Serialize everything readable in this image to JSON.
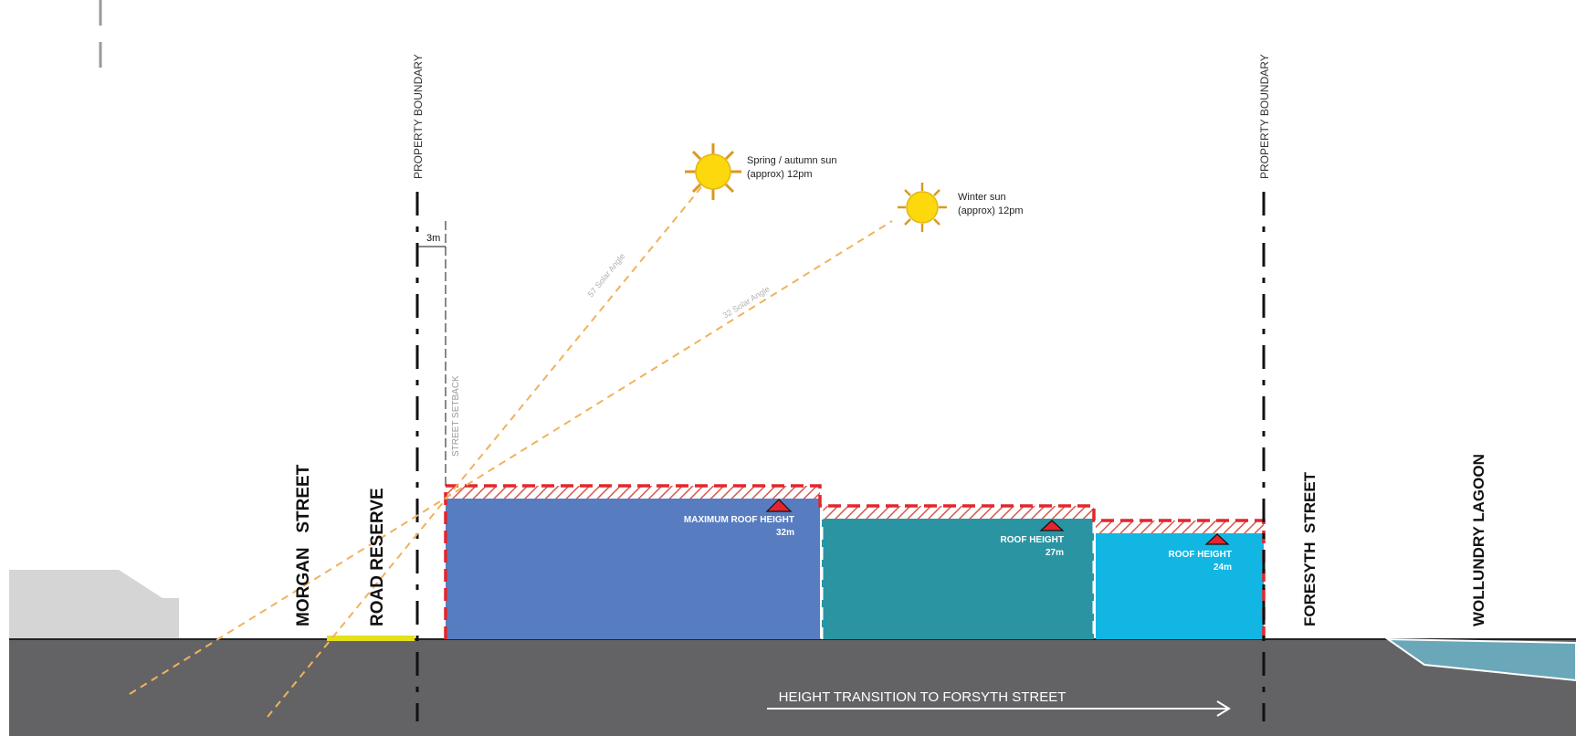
{
  "property_boundary_left": "PROPERTY BOUNDARY",
  "property_boundary_right": "PROPERTY BOUNDARY",
  "setback": {
    "dimension": "3m",
    "label": "STREET SETBACK"
  },
  "sun_spring": {
    "line1": "Spring / autumn sun",
    "line2": "(approx) 12pm",
    "angle_label": "57 Solar Angle"
  },
  "sun_winter": {
    "line1": "Winter sun",
    "line2": "(approx) 12pm",
    "angle_label": "32 Solar Angle"
  },
  "streets": {
    "morgan": "MORGAN   STREET",
    "road_reserve": "ROAD RESERVE",
    "forsyth": "FORESYTH  STREET",
    "lagoon": "WOLLUNDRY LAGOON"
  },
  "buildings": [
    {
      "line1": "MAXIMUM ROOF HEIGHT",
      "line2": "32m",
      "color": "#577cc0"
    },
    {
      "line1": "ROOF HEIGHT",
      "line2": "27m",
      "color": "#2a94a3"
    },
    {
      "line1": "ROOF HEIGHT",
      "line2": "24m",
      "color": "#12b6e2"
    }
  ],
  "transition_label": "HEIGHT TRANSITION TO FORSYTH STREET",
  "colors": {
    "ground": "#636365",
    "envelope": "#e5252d",
    "sun": "#fcd80c",
    "sun_rays": "#d99a1e",
    "sun_line": "#f0b25c",
    "road_reserve": "#e6e01a",
    "lagoon": "#6aa8b9",
    "existing_building": "#d5d5d5"
  }
}
